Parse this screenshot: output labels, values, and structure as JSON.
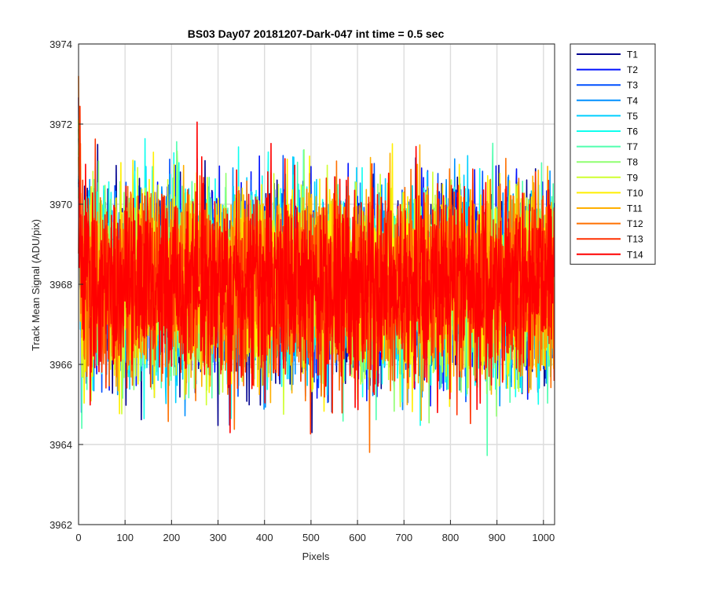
{
  "chart_data": {
    "type": "line",
    "title": "BS03 Day07 20181207-Dark-047 int time = 0.5 sec",
    "xlabel": "Pixels",
    "ylabel": "Track Mean Signal (ADU/pix)",
    "xlim": [
      0,
      1024
    ],
    "ylim": [
      3962,
      3974
    ],
    "xticks": [
      0,
      100,
      200,
      300,
      400,
      500,
      600,
      700,
      800,
      900,
      1000
    ],
    "yticks": [
      3962,
      3964,
      3966,
      3968,
      3970,
      3972,
      3974
    ],
    "grid": true,
    "legend_position": "outside-top-right",
    "x_points": 1024,
    "noise_band": {
      "center": 3968,
      "typical_low": 3966,
      "typical_high": 3970,
      "min": 3963.5,
      "max": 3973.2
    },
    "series": [
      {
        "name": "T1",
        "color": "#00008f"
      },
      {
        "name": "T2",
        "color": "#0010ff"
      },
      {
        "name": "T3",
        "color": "#0050ff"
      },
      {
        "name": "T4",
        "color": "#0090ff"
      },
      {
        "name": "T5",
        "color": "#00cfff"
      },
      {
        "name": "T6",
        "color": "#10ffef"
      },
      {
        "name": "T7",
        "color": "#50ffaf"
      },
      {
        "name": "T8",
        "color": "#8fff70"
      },
      {
        "name": "T9",
        "color": "#cfff30"
      },
      {
        "name": "T10",
        "color": "#ffef00"
      },
      {
        "name": "T11",
        "color": "#ffaf00"
      },
      {
        "name": "T12",
        "color": "#ff7000"
      },
      {
        "name": "T13",
        "color": "#ff3000"
      },
      {
        "name": "T14",
        "color": "#ff0000"
      }
    ]
  }
}
